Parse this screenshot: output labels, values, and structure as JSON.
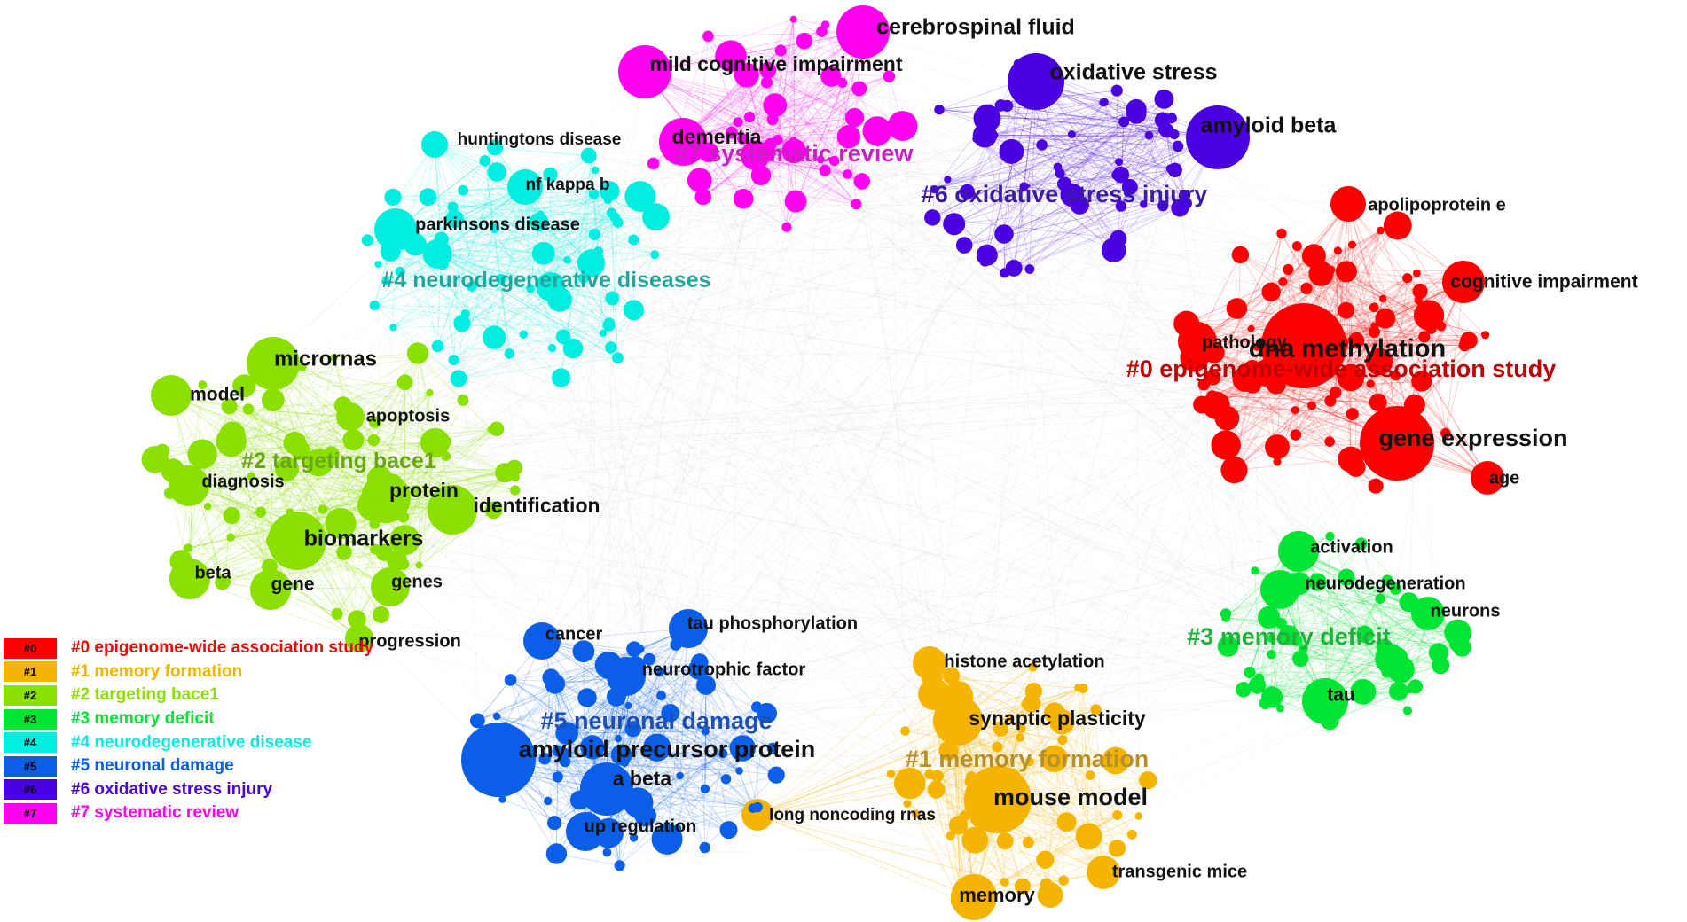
{
  "clusters": [
    {
      "id": "#0",
      "label": "#0 epigenome-wide association study",
      "legend": "#0 epigenome-wide association study",
      "color": "#ff0000",
      "label_color": "#c00000"
    },
    {
      "id": "#1",
      "label": "#1 memory formation",
      "legend": "#1 memory formation",
      "color": "#f5b400",
      "label_color": "#b8902a"
    },
    {
      "id": "#2",
      "label": "#2 targeting bace1",
      "legend": "#2 targeting bace1",
      "color": "#8ce000",
      "label_color": "#6aa51c"
    },
    {
      "id": "#3",
      "label": "#3 memory deficit",
      "legend": "#3 memory deficit",
      "color": "#00e533",
      "label_color": "#22b13c"
    },
    {
      "id": "#4",
      "label": "#4 neurodegenerative diseases",
      "legend": "#4 neurodegenerative disease",
      "color": "#00eee0",
      "label_color": "#26a59c"
    },
    {
      "id": "#5",
      "label": "#5 neuronal damage",
      "legend": "#5 neuronal damage",
      "color": "#0a5ee8",
      "label_color": "#1f4fb5"
    },
    {
      "id": "#6",
      "label": "#6 oxidative stress injury",
      "legend": "#6 oxidative stress injury",
      "color": "#4a00e0",
      "label_color": "#3c1aa8"
    },
    {
      "id": "#7",
      "label": "#7 systematic review",
      "legend": "#7 systematic review",
      "color": "#ff00f0",
      "label_color": "#c81fc0"
    }
  ],
  "keywords": [
    {
      "text": "dna methylation",
      "cluster": "#0"
    },
    {
      "text": "gene expression",
      "cluster": "#0"
    },
    {
      "text": "apolipoprotein e",
      "cluster": "#0"
    },
    {
      "text": "cognitive impairment",
      "cluster": "#0"
    },
    {
      "text": "pathology",
      "cluster": "#0"
    },
    {
      "text": "age",
      "cluster": "#0"
    },
    {
      "text": "mouse model",
      "cluster": "#1"
    },
    {
      "text": "synaptic plasticity",
      "cluster": "#1"
    },
    {
      "text": "histone acetylation",
      "cluster": "#1"
    },
    {
      "text": "memory",
      "cluster": "#1"
    },
    {
      "text": "transgenic mice",
      "cluster": "#1"
    },
    {
      "text": "long noncoding rnas",
      "cluster": "#1"
    },
    {
      "text": "micrornas",
      "cluster": "#2"
    },
    {
      "text": "model",
      "cluster": "#2"
    },
    {
      "text": "apoptosis",
      "cluster": "#2"
    },
    {
      "text": "diagnosis",
      "cluster": "#2"
    },
    {
      "text": "protein",
      "cluster": "#2"
    },
    {
      "text": "identification",
      "cluster": "#2"
    },
    {
      "text": "biomarkers",
      "cluster": "#2"
    },
    {
      "text": "beta",
      "cluster": "#2"
    },
    {
      "text": "gene",
      "cluster": "#2"
    },
    {
      "text": "genes",
      "cluster": "#2"
    },
    {
      "text": "progression",
      "cluster": "#2"
    },
    {
      "text": "activation",
      "cluster": "#3"
    },
    {
      "text": "neurodegeneration",
      "cluster": "#3"
    },
    {
      "text": "neurons",
      "cluster": "#3"
    },
    {
      "text": "tau",
      "cluster": "#3"
    },
    {
      "text": "huntingtons disease",
      "cluster": "#4"
    },
    {
      "text": "nf kappa b",
      "cluster": "#4"
    },
    {
      "text": "parkinsons disease",
      "cluster": "#4"
    },
    {
      "text": "amyloid precursor protein",
      "cluster": "#5"
    },
    {
      "text": "a beta",
      "cluster": "#5"
    },
    {
      "text": "up regulation",
      "cluster": "#5"
    },
    {
      "text": "cancer",
      "cluster": "#5"
    },
    {
      "text": "tau phosphorylation",
      "cluster": "#5"
    },
    {
      "text": "neurotrophic factor",
      "cluster": "#5"
    },
    {
      "text": "oxidative stress",
      "cluster": "#6"
    },
    {
      "text": "amyloid beta",
      "cluster": "#6"
    },
    {
      "text": "cerebrospinal fluid",
      "cluster": "#7"
    },
    {
      "text": "mild cognitive impairment",
      "cluster": "#7"
    },
    {
      "text": "dementia",
      "cluster": "#7"
    }
  ]
}
